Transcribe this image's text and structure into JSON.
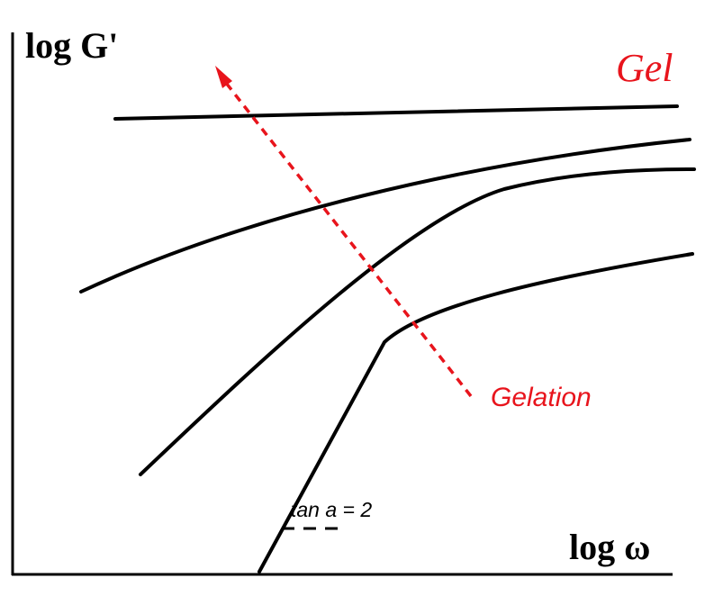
{
  "axes": {
    "y_label": "log G'",
    "x_label": "log ω"
  },
  "labels": {
    "gel": "Gel",
    "gelation": "Gelation",
    "slope": "tan a = 2"
  },
  "curves": [
    {
      "id": "gel-plateau",
      "shape": "nearly flat line (fully gelled)"
    },
    {
      "id": "curve-2",
      "shape": "gently rising"
    },
    {
      "id": "curve-3",
      "shape": "rising"
    },
    {
      "id": "curve-4-liquid",
      "shape": "terminal slope 2 then plateau"
    }
  ],
  "arrow": {
    "direction": "toward Gel (up-left)",
    "style": "dashed"
  },
  "colors": {
    "annotation": "#e8141c",
    "curve": "#000000",
    "axis": "#000000"
  }
}
